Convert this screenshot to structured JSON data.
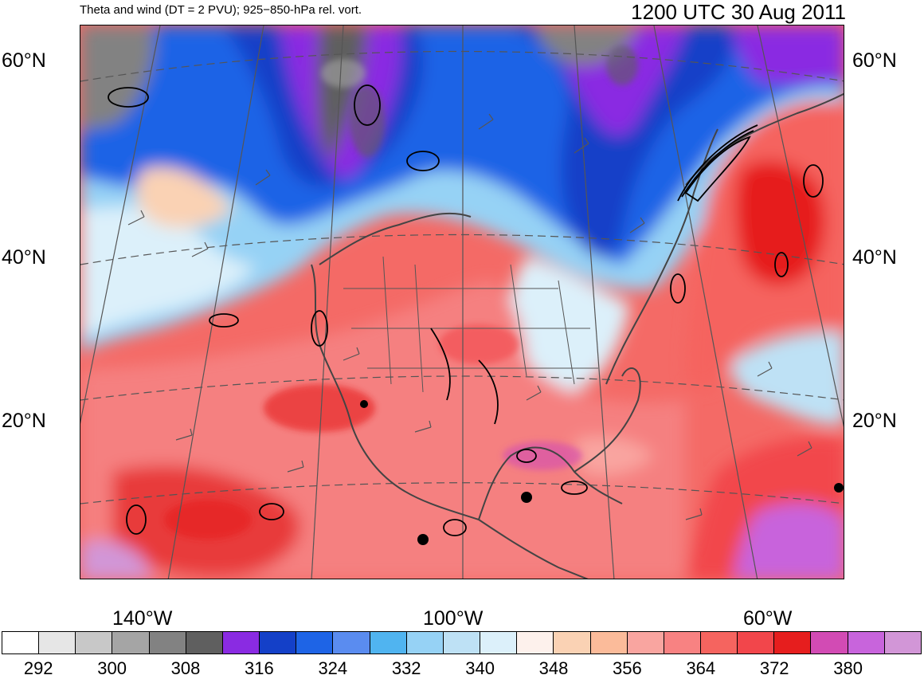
{
  "header": {
    "left_title": "Theta and wind (DT = 2 PVU); 925−850-hPa rel. vort.",
    "right_title": "1200 UTC 30 Aug 2011"
  },
  "axes": {
    "lat_labels_left": [
      "60°N",
      "40°N",
      "20°N"
    ],
    "lat_labels_right": [
      "60°N",
      "40°N",
      "20°N"
    ],
    "lon_labels": [
      "140°W",
      "100°W",
      "60°W"
    ]
  },
  "colorbar": {
    "colors": [
      "#ffffff",
      "#e6e6e6",
      "#c8c8c8",
      "#a5a5a5",
      "#828282",
      "#5f5f5f",
      "#8a2be2",
      "#1440c8",
      "#1e64e6",
      "#5a8cf0",
      "#50b4f0",
      "#96d2f5",
      "#bee1f5",
      "#dcf0fa",
      "#fdf1ec",
      "#fad2b4",
      "#fbbb9a",
      "#f9a5a0",
      "#f88282",
      "#f5645f",
      "#f2464b",
      "#e61e1e",
      "#d24bb4",
      "#c864dc",
      "#d296d7"
    ],
    "labels": [
      "292",
      "300",
      "308",
      "316",
      "324",
      "332",
      "340",
      "348",
      "356",
      "364",
      "372",
      "380"
    ]
  },
  "map": {
    "features": [
      "theta-shading",
      "wind-barbs",
      "vorticity-contours",
      "coastlines",
      "state-borders",
      "lat-lon-grid"
    ]
  }
}
